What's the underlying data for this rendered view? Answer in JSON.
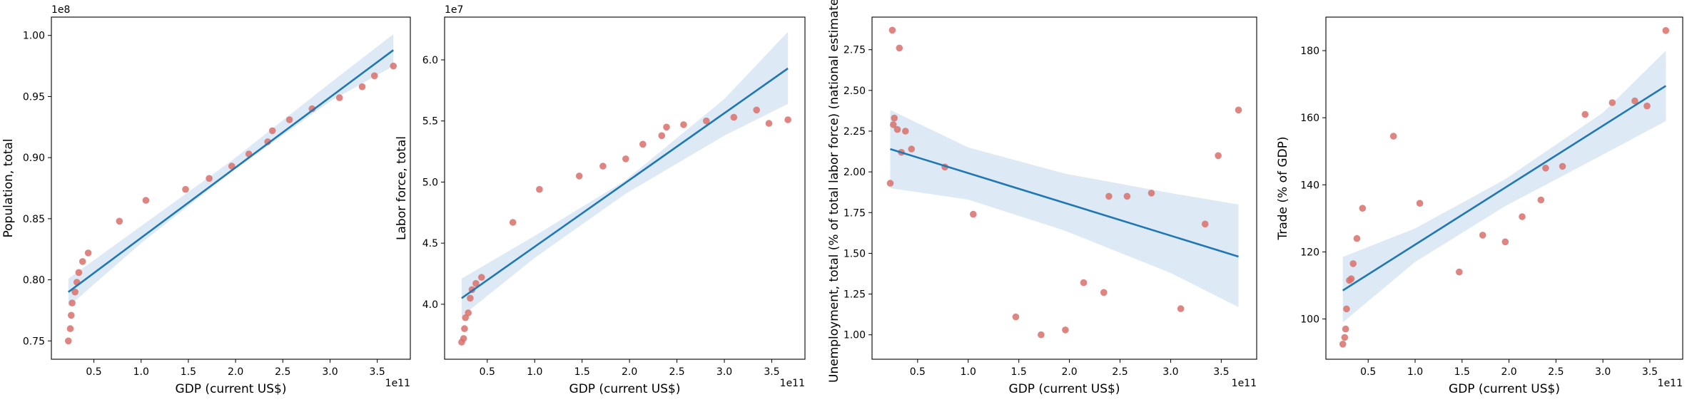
{
  "chart_data": [
    {
      "type": "scatter",
      "xlabel": "GDP (current US$)",
      "ylabel": "Population, total",
      "x_offset_label": "1e11",
      "y_offset_label": "1e8",
      "xlim": [
        0.05,
        3.85
      ],
      "ylim": [
        0.735,
        1.015
      ],
      "x_ticks": [
        0.5,
        1.0,
        1.5,
        2.0,
        2.5,
        3.0,
        3.5
      ],
      "x_tick_labels": [
        "0.5",
        "1.0",
        "1.5",
        "2.0",
        "2.5",
        "3.0",
        "3.5"
      ],
      "y_ticks": [
        0.75,
        0.8,
        0.85,
        0.9,
        0.95,
        1.0
      ],
      "y_tick_labels": [
        "0.75",
        "0.80",
        "0.85",
        "0.90",
        "0.95",
        "1.00"
      ],
      "points": {
        "x": [
          0.23,
          0.25,
          0.26,
          0.27,
          0.3,
          0.32,
          0.34,
          0.38,
          0.44,
          0.77,
          1.05,
          1.47,
          1.72,
          1.96,
          2.14,
          2.34,
          2.39,
          2.57,
          2.81,
          3.1,
          3.34,
          3.47,
          3.67
        ],
        "y": [
          0.75,
          0.76,
          0.771,
          0.781,
          0.79,
          0.798,
          0.806,
          0.815,
          0.822,
          0.848,
          0.865,
          0.874,
          0.883,
          0.893,
          0.903,
          0.913,
          0.922,
          0.931,
          0.94,
          0.949,
          0.958,
          0.967,
          0.975
        ]
      },
      "regression": {
        "x": [
          0.23,
          3.67
        ],
        "y": [
          0.79,
          0.988
        ]
      },
      "ci_band": {
        "x": [
          0.23,
          1.0,
          1.95,
          3.0,
          3.67
        ],
        "lower": [
          0.778,
          0.83,
          0.888,
          0.946,
          0.975
        ],
        "upper": [
          0.801,
          0.844,
          0.897,
          0.961,
          1.001
        ]
      },
      "colors": {
        "points": "#d9706b",
        "line": "#1f77b4",
        "band": "#c6dbef"
      }
    },
    {
      "type": "scatter",
      "xlabel": "GDP (current US$)",
      "ylabel": "Labor force, total",
      "x_offset_label": "1e11",
      "y_offset_label": "1e7",
      "xlim": [
        0.05,
        3.85
      ],
      "ylim": [
        3.55,
        6.35
      ],
      "x_ticks": [
        0.5,
        1.0,
        1.5,
        2.0,
        2.5,
        3.0,
        3.5
      ],
      "x_tick_labels": [
        "0.5",
        "1.0",
        "1.5",
        "2.0",
        "2.5",
        "3.0",
        "3.5"
      ],
      "y_ticks": [
        4.0,
        4.5,
        5.0,
        5.5,
        6.0
      ],
      "y_tick_labels": [
        "4.0",
        "4.5",
        "5.0",
        "5.5",
        "6.0"
      ],
      "points": {
        "x": [
          0.23,
          0.25,
          0.26,
          0.27,
          0.3,
          0.32,
          0.34,
          0.38,
          0.44,
          0.77,
          1.05,
          1.47,
          1.72,
          1.96,
          2.14,
          2.34,
          2.39,
          2.57,
          2.81,
          3.1,
          3.34,
          3.47,
          3.67
        ],
        "y": [
          3.69,
          3.72,
          3.8,
          3.89,
          3.93,
          4.05,
          4.12,
          4.17,
          4.22,
          4.67,
          4.94,
          5.05,
          5.13,
          5.19,
          5.31,
          5.38,
          5.45,
          5.47,
          5.5,
          5.53,
          5.59,
          5.48,
          5.51
        ]
      },
      "regression": {
        "x": [
          0.23,
          3.67
        ],
        "y": [
          4.05,
          5.93
        ]
      },
      "ci_band": {
        "x": [
          0.23,
          1.0,
          1.95,
          3.0,
          3.67
        ],
        "lower": [
          3.9,
          4.38,
          4.9,
          5.38,
          5.64
        ],
        "upper": [
          4.21,
          4.56,
          5.01,
          5.68,
          6.23
        ]
      },
      "colors": {
        "points": "#d9706b",
        "line": "#1f77b4",
        "band": "#c6dbef"
      }
    },
    {
      "type": "scatter",
      "xlabel": "GDP (current US$)",
      "ylabel": "Unemployment, total (% of total labor force) (national estimate)",
      "x_offset_label": "1e11",
      "y_offset_label": "",
      "xlim": [
        0.05,
        3.85
      ],
      "ylim": [
        0.85,
        2.95
      ],
      "x_ticks": [
        0.5,
        1.0,
        1.5,
        2.0,
        2.5,
        3.0,
        3.5
      ],
      "x_tick_labels": [
        "0.5",
        "1.0",
        "1.5",
        "2.0",
        "2.5",
        "3.0",
        "3.5"
      ],
      "y_ticks": [
        1.0,
        1.25,
        1.5,
        1.75,
        2.0,
        2.25,
        2.5,
        2.75
      ],
      "y_tick_labels": [
        "1.00",
        "1.25",
        "1.50",
        "1.75",
        "2.00",
        "2.25",
        "2.50",
        "2.75"
      ],
      "points": {
        "x": [
          0.23,
          0.25,
          0.26,
          0.27,
          0.3,
          0.32,
          0.34,
          0.38,
          0.44,
          0.77,
          1.05,
          1.47,
          1.72,
          1.96,
          2.14,
          2.34,
          2.39,
          2.57,
          2.81,
          3.1,
          3.34,
          3.47,
          3.67
        ],
        "y": [
          1.93,
          2.87,
          2.29,
          2.33,
          2.26,
          2.76,
          2.12,
          2.25,
          2.14,
          2.03,
          1.74,
          1.11,
          1.0,
          1.03,
          1.32,
          1.26,
          1.85,
          1.85,
          1.87,
          1.16,
          1.68,
          2.1,
          2.38
        ]
      },
      "regression": {
        "x": [
          0.23,
          3.67
        ],
        "y": [
          2.14,
          1.48
        ]
      },
      "ci_band": {
        "x": [
          0.23,
          1.0,
          1.95,
          3.0,
          3.67
        ],
        "lower": [
          1.9,
          1.83,
          1.64,
          1.38,
          1.17
        ],
        "upper": [
          2.38,
          2.15,
          1.99,
          1.87,
          1.8
        ]
      },
      "colors": {
        "points": "#d9706b",
        "line": "#1f77b4",
        "band": "#c6dbef"
      }
    },
    {
      "type": "scatter",
      "xlabel": "GDP (current US$)",
      "ylabel": "Trade (% of GDP)",
      "x_offset_label": "1e11",
      "y_offset_label": "",
      "xlim": [
        0.05,
        3.85
      ],
      "ylim": [
        88,
        190
      ],
      "x_ticks": [
        0.5,
        1.0,
        1.5,
        2.0,
        2.5,
        3.0,
        3.5
      ],
      "x_tick_labels": [
        "0.5",
        "1.0",
        "1.5",
        "2.0",
        "2.5",
        "3.0",
        "3.5"
      ],
      "y_ticks": [
        100,
        120,
        140,
        160,
        180
      ],
      "y_tick_labels": [
        "100",
        "120",
        "140",
        "160",
        "180"
      ],
      "points": {
        "x": [
          0.23,
          0.25,
          0.26,
          0.27,
          0.3,
          0.32,
          0.34,
          0.38,
          0.44,
          0.77,
          1.05,
          1.47,
          1.72,
          1.96,
          2.14,
          2.34,
          2.39,
          2.57,
          2.81,
          3.1,
          3.34,
          3.47,
          3.67
        ],
        "y": [
          92.5,
          94.5,
          97.0,
          103.0,
          111.5,
          112.0,
          116.5,
          124.0,
          133.0,
          154.5,
          134.5,
          114.0,
          125.0,
          123.0,
          130.5,
          135.5,
          145.0,
          145.5,
          161.0,
          164.5,
          165.0,
          163.5,
          186.0
        ]
      },
      "regression": {
        "x": [
          0.23,
          3.67
        ],
        "y": [
          108.5,
          169.5
        ]
      },
      "ci_band": {
        "x": [
          0.23,
          1.0,
          1.95,
          3.0,
          3.67
        ],
        "lower": [
          99.0,
          117.0,
          133.5,
          149.0,
          159.0
        ],
        "upper": [
          118.5,
          127.0,
          141.5,
          161.5,
          180.0
        ]
      },
      "colors": {
        "points": "#d9706b",
        "line": "#1f77b4",
        "band": "#c6dbef"
      }
    }
  ]
}
